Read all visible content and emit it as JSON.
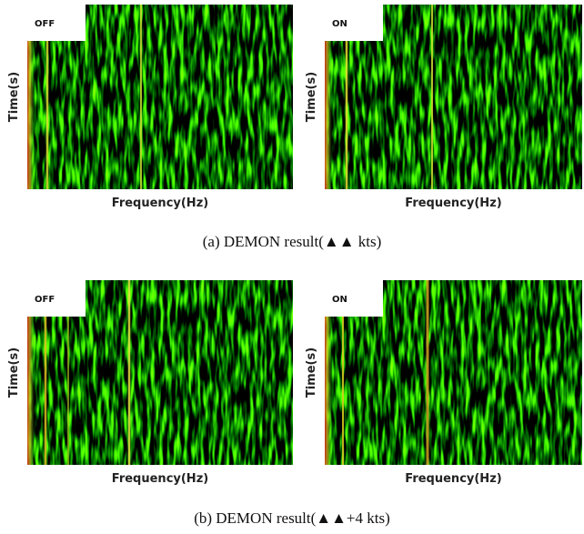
{
  "figures": [
    {
      "panels": [
        {
          "label": "OFF",
          "y_axis": "Time(s)",
          "x_axis": "Frequency(Hz)"
        },
        {
          "label": "ON",
          "y_axis": "Time(s)",
          "x_axis": "Frequency(Hz)"
        }
      ],
      "caption": "(a)  DEMON  result(▲▲ kts)"
    },
    {
      "panels": [
        {
          "label": "OFF",
          "y_axis": "Time(s)",
          "x_axis": "Frequency(Hz)"
        },
        {
          "label": "ON",
          "y_axis": "Time(s)",
          "x_axis": "Frequency(Hz)"
        }
      ],
      "caption": "(b)  DEMON  result(▲▲+4 kts)"
    }
  ]
}
